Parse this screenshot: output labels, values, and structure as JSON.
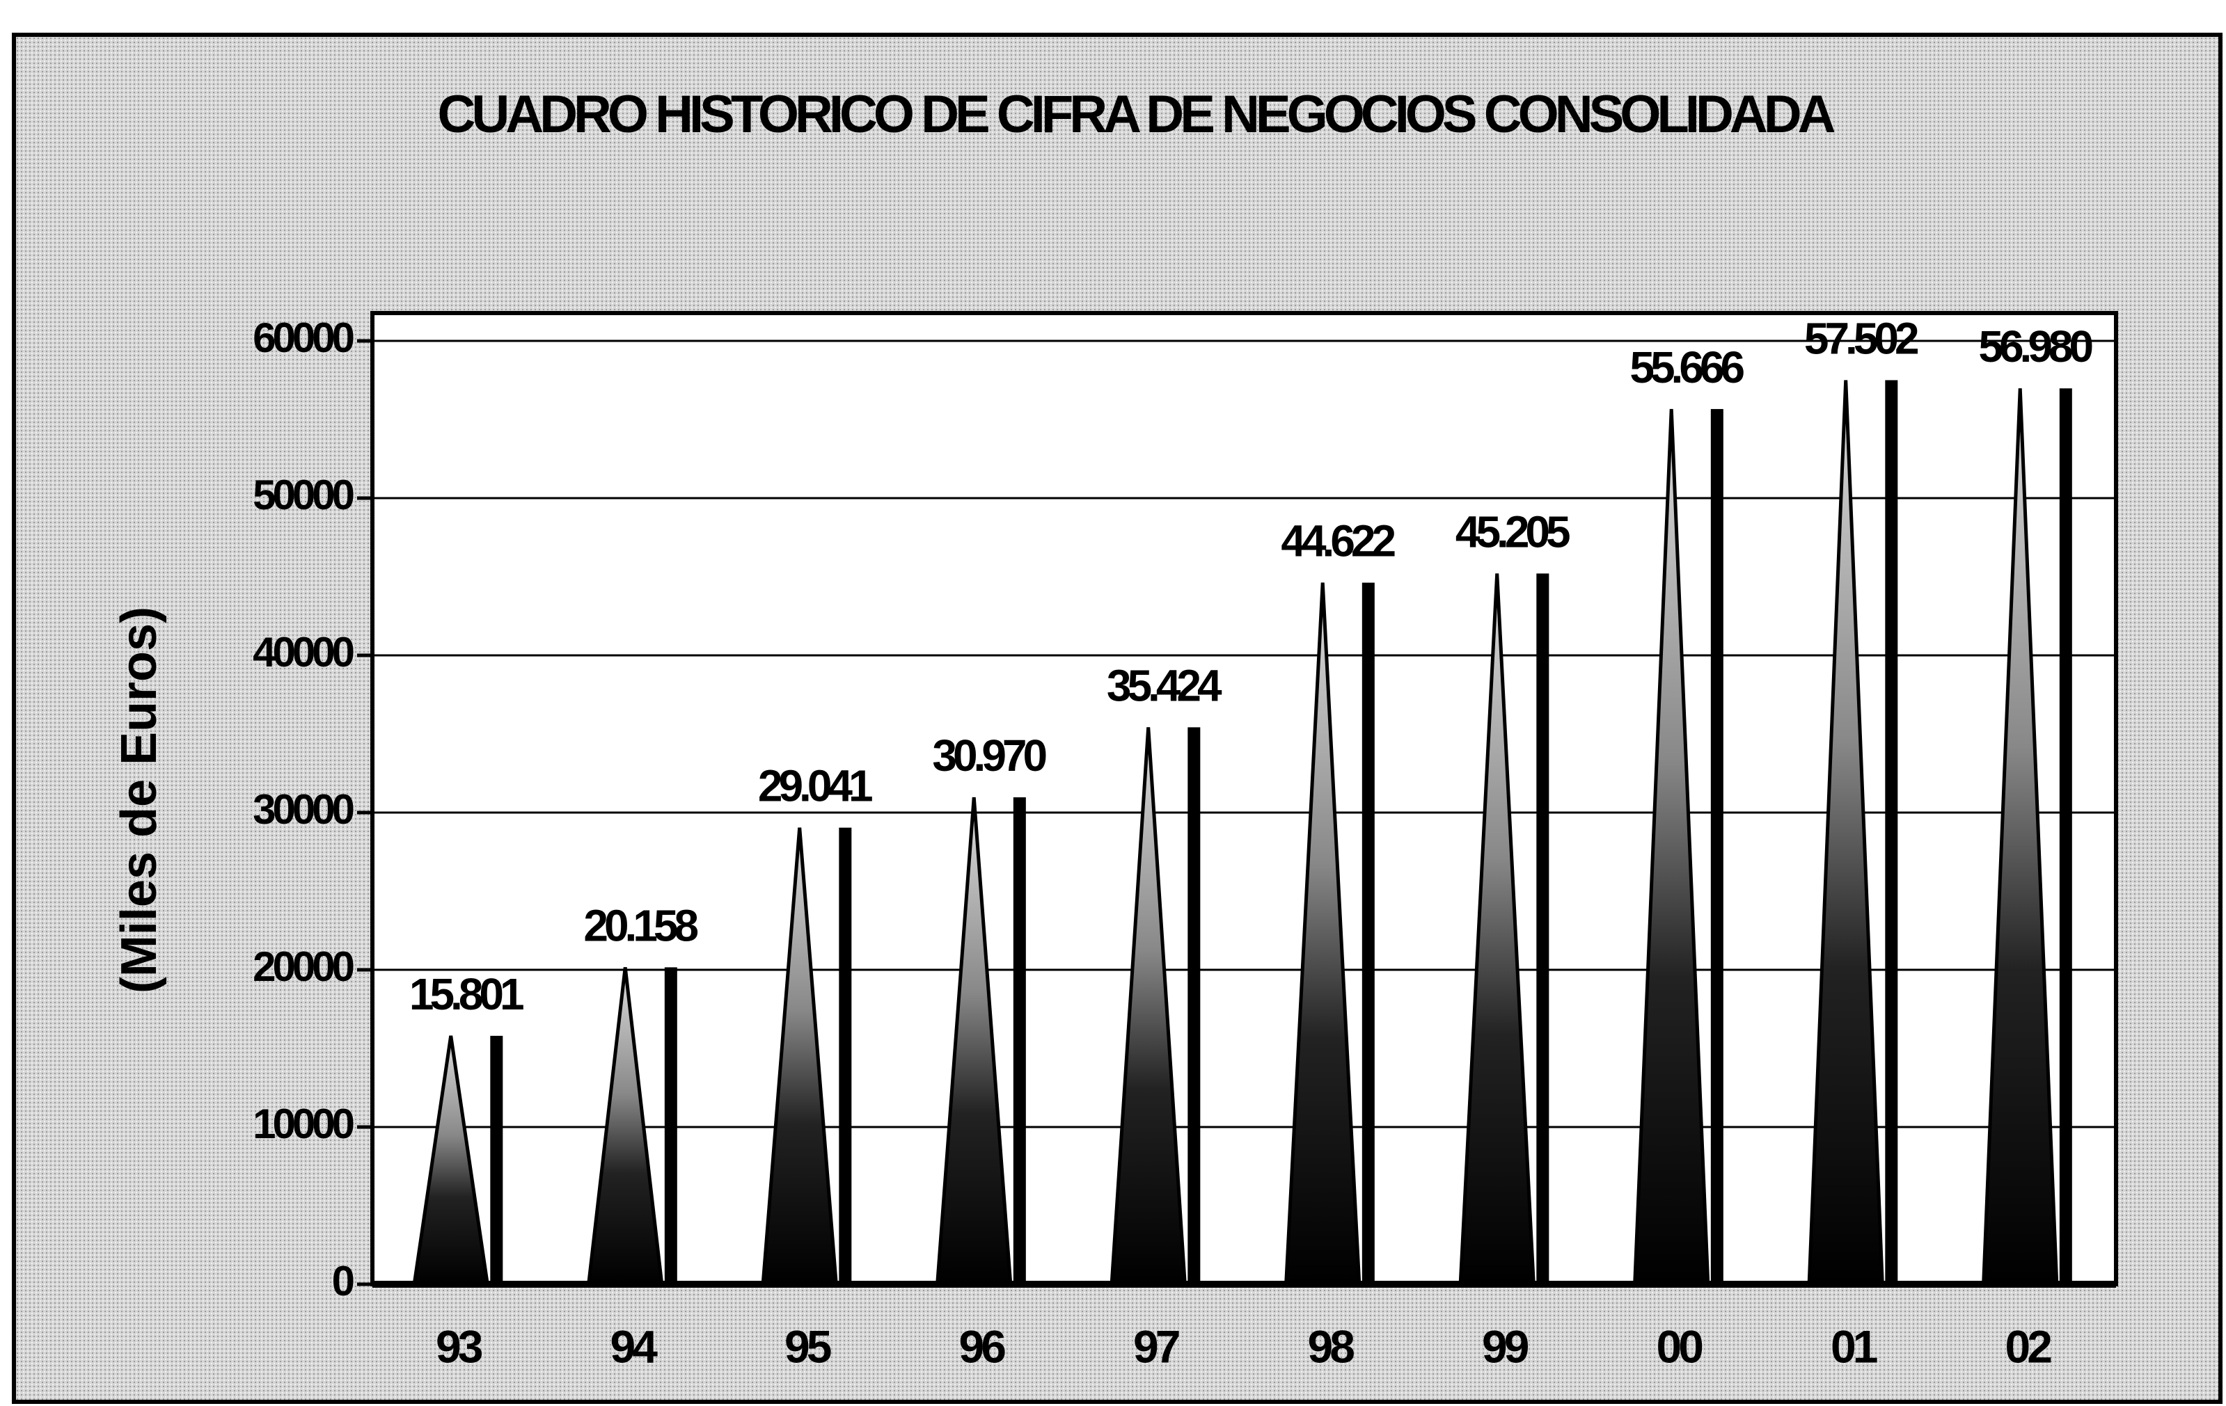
{
  "chart_data": {
    "type": "bar",
    "title": "CUADRO HISTORICO DE CIFRA DE NEGOCIOS CONSOLIDADA",
    "y_label": "(Miles de Euros)",
    "categories": [
      "93",
      "94",
      "95",
      "96",
      "97",
      "98",
      "99",
      "00",
      "01",
      "02"
    ],
    "values": [
      15801,
      20158,
      29041,
      30970,
      35424,
      44622,
      45205,
      55666,
      57502,
      56980
    ],
    "value_labels": [
      "15.801",
      "20.158",
      "29.041",
      "30.970",
      "35.424",
      "44.622",
      "45.205",
      "55.666",
      "57.502",
      "56.980"
    ],
    "color": "#000000",
    "ylim": [
      0,
      60000
    ],
    "yticks": [
      0,
      10000,
      20000,
      30000,
      40000,
      50000,
      60000
    ],
    "grid": true
  }
}
